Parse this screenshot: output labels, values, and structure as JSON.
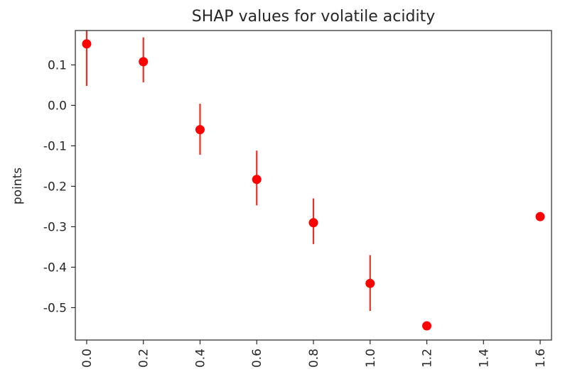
{
  "chart_data": {
    "type": "scatter",
    "title": "SHAP values for volatile acidity",
    "xlabel": "",
    "ylabel": "points",
    "xlim": [
      -0.04,
      1.64
    ],
    "ylim": [
      -0.58,
      0.185
    ],
    "xticks": [
      "0.0",
      "0.2",
      "0.4",
      "0.6",
      "0.8",
      "1.0",
      "1.2",
      "1.4",
      "1.6"
    ],
    "yticks": [
      "0.1",
      "0.0",
      "-0.1",
      "-0.2",
      "-0.3",
      "-0.4",
      "-0.5"
    ],
    "grid": false,
    "marker_color": "#ff0000",
    "errorbar_color": "#e8312a",
    "points": [
      {
        "x": 0.0,
        "y": 0.152,
        "err_low": 0.048,
        "err_high": 0.19
      },
      {
        "x": 0.2,
        "y": 0.108,
        "err_low": 0.057,
        "err_high": 0.168
      },
      {
        "x": 0.4,
        "y": -0.06,
        "err_low": -0.122,
        "err_high": 0.004
      },
      {
        "x": 0.6,
        "y": -0.183,
        "err_low": -0.247,
        "err_high": -0.112
      },
      {
        "x": 0.8,
        "y": -0.29,
        "err_low": -0.343,
        "err_high": -0.23
      },
      {
        "x": 1.0,
        "y": -0.44,
        "err_low": -0.508,
        "err_high": -0.37
      },
      {
        "x": 1.2,
        "y": -0.545,
        "err_low": null,
        "err_high": null
      },
      {
        "x": 1.6,
        "y": -0.275,
        "err_low": null,
        "err_high": null
      }
    ]
  }
}
